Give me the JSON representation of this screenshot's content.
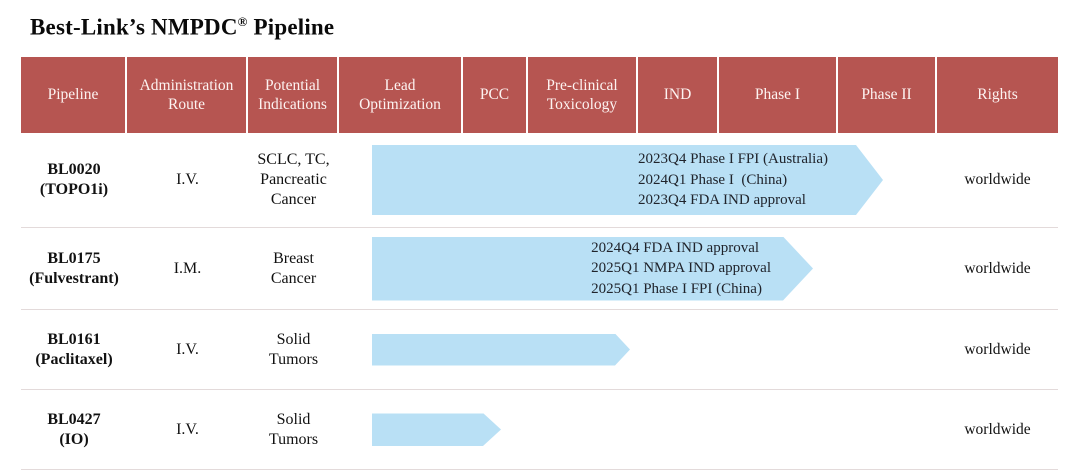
{
  "title": {
    "prefix": "Best-Link’s NMPDC",
    "registered": "®",
    "suffix": " Pipeline"
  },
  "colors": {
    "header_bg": "#b65551",
    "header_text": "#fdf3f1",
    "arrow_fill": "#b9e0f5",
    "row_separator": "#e3dada",
    "body_text": "#111111"
  },
  "header": {
    "columns": [
      "Pipeline",
      "Administration Route",
      "Potential Indications",
      "Lead Optimization",
      "PCC",
      "Pre-clinical Toxicology",
      "IND",
      "Phase I",
      "Phase II",
      "Rights"
    ]
  },
  "rows": [
    {
      "name": "BL0020\n(TOPO1i)",
      "route": "I.V.",
      "indications": "SCLC, TC,\nPancreatic\nCancer",
      "milestones": "2023Q4 Phase I FPI (Australia)\n2024Q1 Phase I  (China)\n2023Q4 FDA IND approval",
      "rights": "worldwide",
      "stage_reached": "Phase I / early Phase II"
    },
    {
      "name": "BL0175\n(Fulvestrant)",
      "route": "I.M.",
      "indications": "Breast\nCancer",
      "milestones": "2024Q4 FDA IND approval\n2025Q1 NMPA IND approval\n2025Q1 Phase I FPI (China)",
      "rights": "worldwide",
      "stage_reached": "Phase I"
    },
    {
      "name": "BL0161\n(Paclitaxel)",
      "route": "I.V.",
      "indications": "Solid\nTumors",
      "milestones": "",
      "rights": "worldwide",
      "stage_reached": "Pre-clinical Toxicology"
    },
    {
      "name": "BL0427\n(IO)",
      "route": "I.V.",
      "indications": "Solid\nTumors",
      "milestones": "",
      "rights": "worldwide",
      "stage_reached": "PCC"
    }
  ]
}
